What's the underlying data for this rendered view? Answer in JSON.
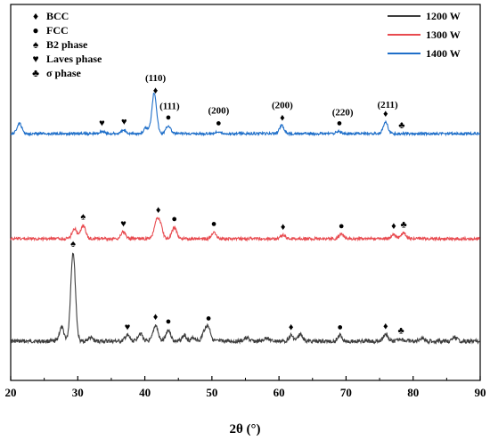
{
  "chart_data": {
    "type": "line",
    "xlabel": "2θ (°)",
    "ylabel": "",
    "xlim": [
      20,
      90
    ],
    "xticks": [
      20,
      30,
      40,
      50,
      60,
      70,
      80,
      90
    ],
    "yticks_shown": false,
    "grid": false,
    "legend_position": "top-right",
    "series": [
      {
        "name": "1200 W",
        "color": "#3d3d3d",
        "offset": 0,
        "peaks": [
          {
            "x": 27.6,
            "y": 12
          },
          {
            "x": 29.3,
            "y": 78
          },
          {
            "x": 31.9,
            "y": 3
          },
          {
            "x": 37.4,
            "y": 5
          },
          {
            "x": 39.3,
            "y": 7
          },
          {
            "x": 41.6,
            "y": 14
          },
          {
            "x": 43.5,
            "y": 10
          },
          {
            "x": 45.9,
            "y": 5
          },
          {
            "x": 47.3,
            "y": 3
          },
          {
            "x": 48.9,
            "y": 8
          },
          {
            "x": 49.5,
            "y": 11
          },
          {
            "x": 55.2,
            "y": 3
          },
          {
            "x": 58.2,
            "y": 3
          },
          {
            "x": 61.8,
            "y": 5
          },
          {
            "x": 63.2,
            "y": 6
          },
          {
            "x": 69.1,
            "y": 5
          },
          {
            "x": 75.9,
            "y": 6
          },
          {
            "x": 78.2,
            "y": 2
          },
          {
            "x": 81.3,
            "y": 3
          },
          {
            "x": 86.2,
            "y": 3
          }
        ]
      },
      {
        "name": "1300 W",
        "color": "#e84a4f",
        "offset": 115,
        "peaks": [
          {
            "x": 29.5,
            "y": 9
          },
          {
            "x": 30.8,
            "y": 12
          },
          {
            "x": 36.8,
            "y": 6
          },
          {
            "x": 41.7,
            "y": 14
          },
          {
            "x": 42.3,
            "y": 12
          },
          {
            "x": 44.4,
            "y": 10
          },
          {
            "x": 50.3,
            "y": 6
          },
          {
            "x": 60.6,
            "y": 3
          },
          {
            "x": 69.3,
            "y": 4
          },
          {
            "x": 77.1,
            "y": 4
          },
          {
            "x": 78.6,
            "y": 5
          }
        ]
      },
      {
        "name": "1400 W",
        "color": "#1f6fc9",
        "offset": 248,
        "peaks": [
          {
            "x": 21.3,
            "y": 9
          },
          {
            "x": 33.6,
            "y": 2
          },
          {
            "x": 36.9,
            "y": 3
          },
          {
            "x": 40.2,
            "y": 5
          },
          {
            "x": 41.4,
            "y": 36
          },
          {
            "x": 43.5,
            "y": 7
          },
          {
            "x": 50.9,
            "y": 2
          },
          {
            "x": 60.4,
            "y": 7
          },
          {
            "x": 68.9,
            "y": 2
          },
          {
            "x": 75.9,
            "y": 10
          }
        ]
      }
    ],
    "phase_legend": [
      {
        "symbol": "♦",
        "label": "BCC"
      },
      {
        "symbol": "●",
        "label": "FCC"
      },
      {
        "symbol": "♠",
        "label": "B2 phase"
      },
      {
        "symbol": "♥",
        "label": "Laves phase"
      },
      {
        "symbol": "♣",
        "label": "σ phase"
      }
    ],
    "peak_labels": [
      {
        "x": 41.6,
        "text": "(110)"
      },
      {
        "x": 43.7,
        "text": "(111)"
      },
      {
        "x": 51.0,
        "text": "(200)"
      },
      {
        "x": 60.5,
        "text": "(200)"
      },
      {
        "x": 69.5,
        "text": "(220)"
      },
      {
        "x": 76.2,
        "text": "(211)"
      }
    ],
    "markers": [
      {
        "series": "1400 W",
        "x": 33.6,
        "symbol": "♥"
      },
      {
        "series": "1400 W",
        "x": 36.9,
        "symbol": "♥"
      },
      {
        "series": "1400 W",
        "x": 41.6,
        "symbol": "♦"
      },
      {
        "series": "1400 W",
        "x": 43.5,
        "symbol": "●"
      },
      {
        "series": "1400 W",
        "x": 51.0,
        "symbol": "●"
      },
      {
        "series": "1400 W",
        "x": 60.5,
        "symbol": "♦"
      },
      {
        "series": "1400 W",
        "x": 69.0,
        "symbol": "●"
      },
      {
        "series": "1400 W",
        "x": 75.9,
        "symbol": "♦"
      },
      {
        "series": "1400 W",
        "x": 78.3,
        "symbol": "♣"
      },
      {
        "series": "1300 W",
        "x": 30.8,
        "symbol": "♠"
      },
      {
        "series": "1300 W",
        "x": 36.8,
        "symbol": "♥"
      },
      {
        "series": "1300 W",
        "x": 42.0,
        "symbol": "♦"
      },
      {
        "series": "1300 W",
        "x": 44.4,
        "symbol": "●"
      },
      {
        "series": "1300 W",
        "x": 50.3,
        "symbol": "●"
      },
      {
        "series": "1300 W",
        "x": 60.6,
        "symbol": "♦"
      },
      {
        "series": "1300 W",
        "x": 69.3,
        "symbol": "●"
      },
      {
        "series": "1300 W",
        "x": 77.1,
        "symbol": "♦"
      },
      {
        "series": "1300 W",
        "x": 78.6,
        "symbol": "♣"
      },
      {
        "series": "1200 W",
        "x": 29.3,
        "symbol": "♠"
      },
      {
        "series": "1200 W",
        "x": 37.4,
        "symbol": "♥"
      },
      {
        "series": "1200 W",
        "x": 41.6,
        "symbol": "♦"
      },
      {
        "series": "1200 W",
        "x": 43.5,
        "symbol": "●"
      },
      {
        "series": "1200 W",
        "x": 49.5,
        "symbol": "●"
      },
      {
        "series": "1200 W",
        "x": 61.8,
        "symbol": "♦"
      },
      {
        "series": "1200 W",
        "x": 69.1,
        "symbol": "●"
      },
      {
        "series": "1200 W",
        "x": 75.9,
        "symbol": "♦"
      },
      {
        "series": "1200 W",
        "x": 78.2,
        "symbol": "♣"
      }
    ]
  }
}
